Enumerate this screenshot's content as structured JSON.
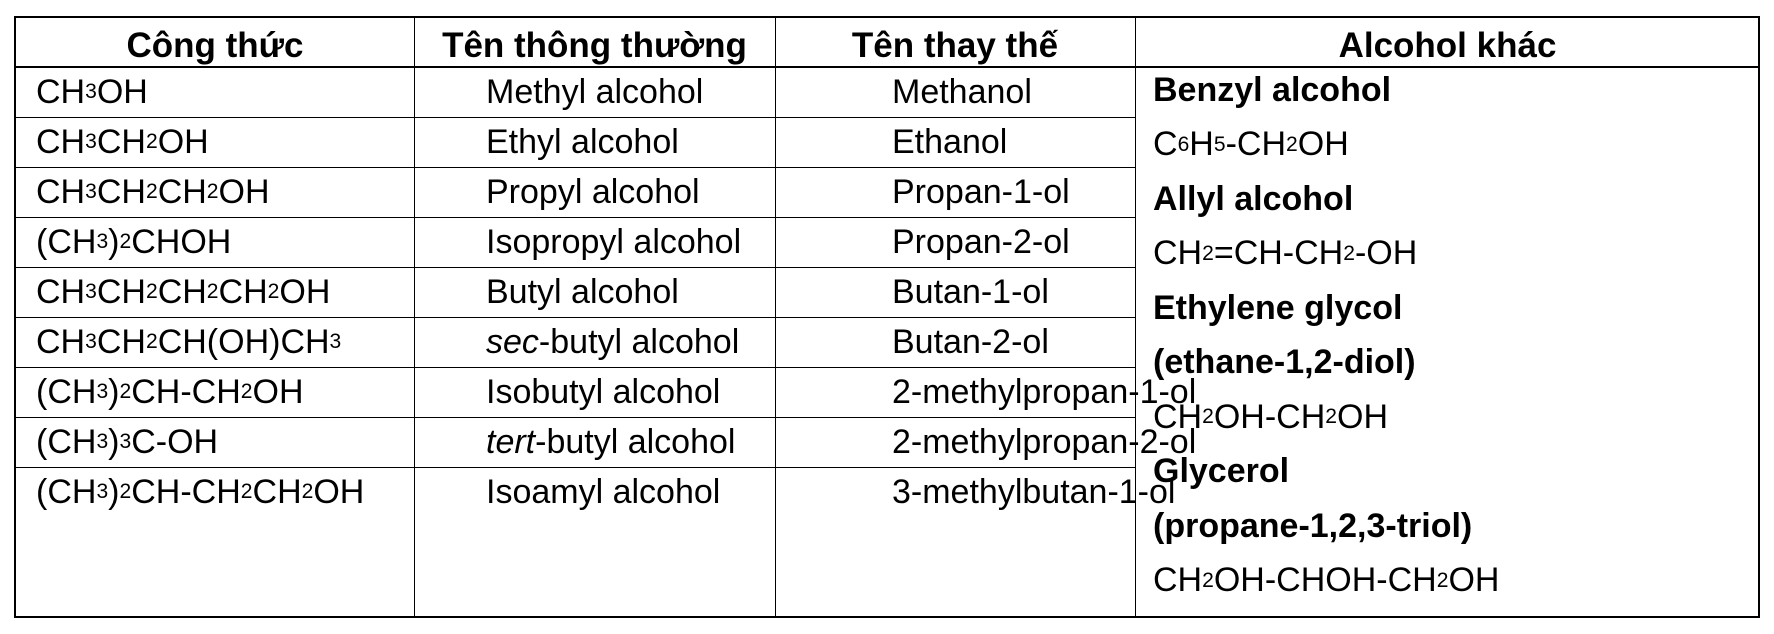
{
  "headers": [
    "Công thức",
    "Tên thông thường",
    "Tên thay thế",
    "Alcohol khác"
  ],
  "rows": [
    {
      "formula": [
        [
          "CH",
          ""
        ],
        [
          "3",
          "sub"
        ],
        [
          "OH",
          ""
        ]
      ],
      "common": [
        [
          "Methyl alcohol",
          ""
        ]
      ],
      "substitutive": "Methanol"
    },
    {
      "formula": [
        [
          "CH",
          ""
        ],
        [
          "3",
          "sub"
        ],
        [
          "CH",
          ""
        ],
        [
          "2",
          "sub"
        ],
        [
          "OH",
          ""
        ]
      ],
      "common": [
        [
          "Ethyl alcohol",
          ""
        ]
      ],
      "substitutive": "Ethanol"
    },
    {
      "formula": [
        [
          "CH",
          ""
        ],
        [
          "3",
          "sub"
        ],
        [
          "CH",
          ""
        ],
        [
          "2",
          "sub"
        ],
        [
          "CH",
          ""
        ],
        [
          "2",
          "sub"
        ],
        [
          "OH",
          ""
        ]
      ],
      "common": [
        [
          "Propyl alcohol",
          ""
        ]
      ],
      "substitutive": "Propan-1-ol"
    },
    {
      "formula": [
        [
          "(CH",
          ""
        ],
        [
          "3",
          "sub"
        ],
        [
          ")",
          ""
        ],
        [
          "2",
          "sub"
        ],
        [
          "CHOH",
          ""
        ]
      ],
      "common": [
        [
          "Isopropyl alcohol",
          ""
        ]
      ],
      "substitutive": "Propan-2-ol"
    },
    {
      "formula": [
        [
          "CH",
          ""
        ],
        [
          "3",
          "sub"
        ],
        [
          "CH",
          ""
        ],
        [
          "2",
          "sub"
        ],
        [
          "CH",
          ""
        ],
        [
          "2",
          "sub"
        ],
        [
          "CH",
          ""
        ],
        [
          "2",
          "sub"
        ],
        [
          "OH",
          ""
        ]
      ],
      "common": [
        [
          "Butyl alcohol",
          ""
        ]
      ],
      "substitutive": "Butan-1-ol"
    },
    {
      "formula": [
        [
          "CH",
          ""
        ],
        [
          "3",
          "sub"
        ],
        [
          "CH",
          ""
        ],
        [
          "2",
          "sub"
        ],
        [
          "CH(OH)CH",
          ""
        ],
        [
          "3",
          "sub"
        ]
      ],
      "common": [
        [
          "sec",
          "i"
        ],
        [
          "-butyl alcohol",
          ""
        ]
      ],
      "substitutive": "Butan-2-ol"
    },
    {
      "formula": [
        [
          "(CH",
          ""
        ],
        [
          "3",
          "sub"
        ],
        [
          ")",
          ""
        ],
        [
          "2",
          "sub"
        ],
        [
          "CH-CH",
          ""
        ],
        [
          "2",
          "sub"
        ],
        [
          "OH",
          ""
        ]
      ],
      "common": [
        [
          "Isobutyl alcohol",
          ""
        ]
      ],
      "substitutive": "2-methylpropan-1-ol"
    },
    {
      "formula": [
        [
          "(CH",
          ""
        ],
        [
          "3",
          "sub"
        ],
        [
          ")",
          ""
        ],
        [
          "3",
          "sub"
        ],
        [
          "C-OH",
          ""
        ]
      ],
      "common": [
        [
          "tert",
          "i"
        ],
        [
          "-butyl alcohol",
          ""
        ]
      ],
      "substitutive": "2-methylpropan-2-ol"
    },
    {
      "formula": [
        [
          "(CH",
          ""
        ],
        [
          "3",
          "sub"
        ],
        [
          ")",
          ""
        ],
        [
          "2",
          "sub"
        ],
        [
          "CH-CH",
          ""
        ],
        [
          "2",
          "sub"
        ],
        [
          "CH",
          ""
        ],
        [
          "2",
          "sub"
        ],
        [
          "OH",
          ""
        ]
      ],
      "common": [
        [
          "Isoamyl alcohol",
          ""
        ]
      ],
      "substitutive": "3-methylbutan-1-ol"
    }
  ],
  "other_alcohols": [
    {
      "type": "name",
      "text": "Benzyl alcohol"
    },
    {
      "type": "formula",
      "parts": [
        [
          "C",
          ""
        ],
        [
          "6",
          "sub"
        ],
        [
          "H",
          ""
        ],
        [
          "5",
          "sub"
        ],
        [
          "-CH",
          ""
        ],
        [
          "2",
          "sub"
        ],
        [
          "OH",
          ""
        ]
      ]
    },
    {
      "type": "name",
      "text": "Allyl alcohol"
    },
    {
      "type": "formula",
      "parts": [
        [
          "CH",
          ""
        ],
        [
          "2",
          "sub"
        ],
        [
          "=CH-CH",
          ""
        ],
        [
          "2",
          "sub"
        ],
        [
          "-OH",
          ""
        ]
      ]
    },
    {
      "type": "name",
      "text": "Ethylene glycol"
    },
    {
      "type": "name",
      "text": "(ethane-1,2-diol)"
    },
    {
      "type": "formula",
      "parts": [
        [
          "CH",
          ""
        ],
        [
          "2",
          "sub"
        ],
        [
          "OH-CH",
          ""
        ],
        [
          "2",
          "sub"
        ],
        [
          "OH",
          ""
        ]
      ]
    },
    {
      "type": "name",
      "text": "Glycerol"
    },
    {
      "type": "name",
      "text": "(propane-1,2,3-triol)"
    },
    {
      "type": "formula",
      "parts": [
        [
          "CH",
          ""
        ],
        [
          "2",
          "sub"
        ],
        [
          "OH-CHOH-CH",
          ""
        ],
        [
          "2",
          "sub"
        ],
        [
          "OH",
          ""
        ]
      ]
    }
  ]
}
